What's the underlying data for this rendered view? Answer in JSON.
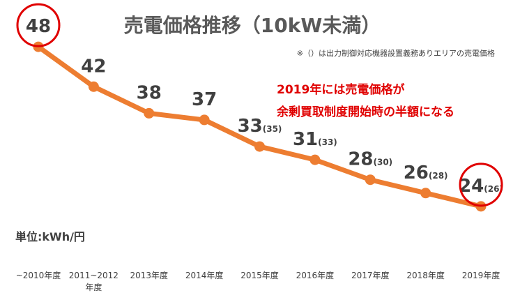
{
  "chart_data": {
    "type": "line",
    "title": "売電価格推移（10kW未満）",
    "note": "※（）は出力制御対応機器設置義務ありエリアの売電価格",
    "unit_label": "単位:kWh/円",
    "annotation": [
      "2019年には売電価格が",
      "余剰買取制度開始時の半額になる"
    ],
    "categories": [
      "~2010年度",
      "2011~2012 年度",
      "2013年度",
      "2014年度",
      "2015年度",
      "2016年度",
      "2017年度",
      "2018年度",
      "2019年度"
    ],
    "category_lines": [
      [
        "~2010年度"
      ],
      [
        "2011~2012",
        "年度"
      ],
      [
        "2013年度"
      ],
      [
        "2014年度"
      ],
      [
        "2015年度"
      ],
      [
        "2016年度"
      ],
      [
        "2017年度"
      ],
      [
        "2018年度"
      ],
      [
        "2019年度"
      ]
    ],
    "series": [
      {
        "name": "売電価格",
        "values": [
          48,
          42,
          38,
          37,
          33,
          31,
          28,
          26,
          24
        ],
        "labels": [
          "48",
          "42",
          "38",
          "37",
          "33",
          "31",
          "28",
          "26",
          "24"
        ],
        "sub_labels": [
          "",
          "",
          "",
          "",
          "(35)",
          "(33)",
          "(30)",
          "(28)",
          "(26)"
        ]
      }
    ],
    "ylim": [
      20,
      50
    ],
    "highlighted_points": [
      0,
      8
    ],
    "colors": {
      "line": "#ED7D31",
      "highlight": "#E00000",
      "text": "#404040"
    }
  }
}
